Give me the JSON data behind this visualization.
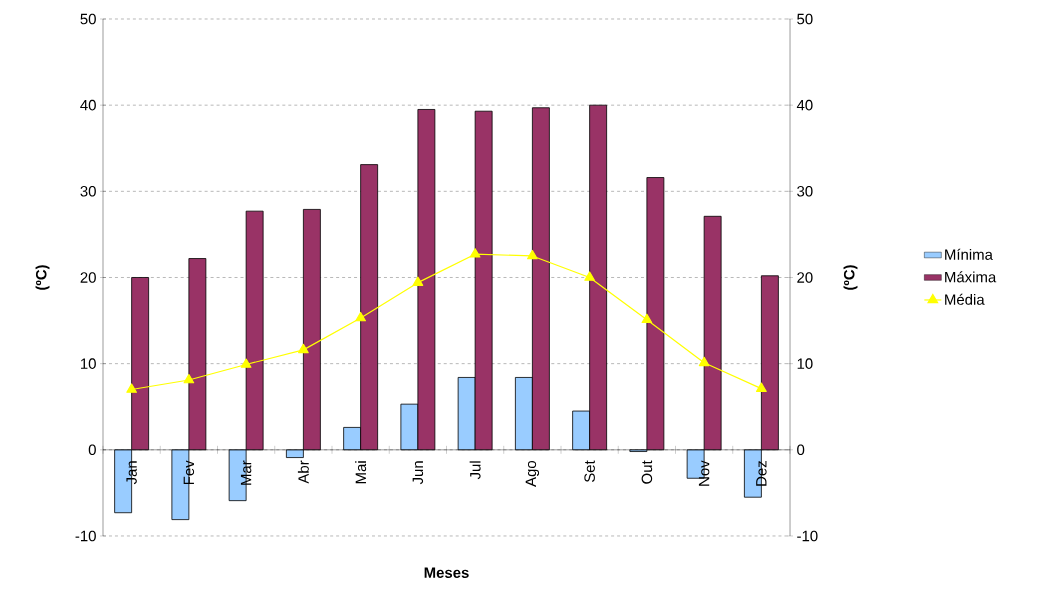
{
  "chart_data": {
    "type": "bar",
    "xlabel": "Meses",
    "ylabel": "(ºC)",
    "y2label": "(ºC)",
    "categories": [
      "Jan",
      "Fev",
      "Mar",
      "Abr",
      "Mai",
      "Jun",
      "Jul",
      "Ago",
      "Set",
      "Out",
      "Nov",
      "Dez"
    ],
    "series": [
      {
        "name": "Mínima",
        "color": "#99ccff",
        "values": [
          -7.3,
          -8.1,
          -5.9,
          -0.9,
          2.6,
          5.3,
          8.4,
          8.4,
          4.5,
          -0.2,
          -3.3,
          -5.5
        ]
      },
      {
        "name": "Máxima",
        "color": "#993366",
        "values": [
          20.0,
          22.2,
          27.7,
          27.9,
          33.1,
          39.5,
          39.3,
          39.7,
          40.0,
          31.6,
          27.1,
          20.2
        ]
      },
      {
        "name": "Média",
        "type": "line",
        "color": "#ffff00",
        "values": [
          7.0,
          8.1,
          9.9,
          11.6,
          15.3,
          19.4,
          22.7,
          22.5,
          20.0,
          15.1,
          10.1,
          7.1
        ]
      }
    ],
    "ylim": [
      -10,
      50
    ],
    "yticks": [
      -10,
      0,
      10,
      20,
      30,
      40,
      50
    ],
    "y2lim": [
      -10,
      50
    ],
    "y2ticks": [
      -10,
      0,
      10,
      20,
      30,
      40,
      50
    ],
    "grid": "y",
    "legend": "right",
    "marker": "triangle",
    "line_style": "solid"
  }
}
